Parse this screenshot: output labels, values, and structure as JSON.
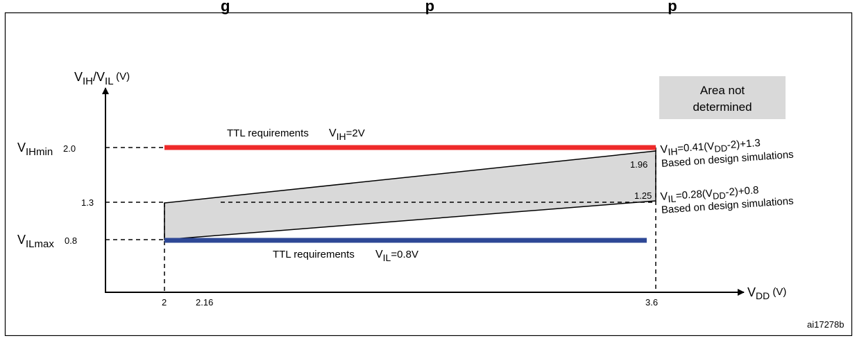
{
  "header": {
    "title_fragment": "g                                              p                                                       p"
  },
  "legend": {
    "label_line1": "Area not",
    "label_line2": "determined",
    "fill": "#d9d9d9"
  },
  "axes": {
    "y_label_main1": "V",
    "y_label_sub1": "IH",
    "y_label_main2": "/V",
    "y_label_sub2": "IL",
    "y_label_unit": " (V)",
    "x_label_main": "V",
    "x_label_sub": "DD",
    "x_label_unit": " (V)"
  },
  "y_ticks": {
    "vih_main": "V",
    "vih_sub": "IHmin",
    "v20": "2.0",
    "v13": "1.3",
    "vil_main": "V",
    "vil_sub": "ILmax",
    "v08": "0.8"
  },
  "x_ticks": {
    "v2": "2",
    "v216": "2.16",
    "v36": "3.6"
  },
  "ttl_high": {
    "label": "TTL requirements",
    "eq_main": "V",
    "eq_sub": "IH",
    "eq_rest": "=2V",
    "color": "#ee2a2a"
  },
  "ttl_low": {
    "label": "TTL requirements",
    "eq_main": "V",
    "eq_sub": "IL",
    "eq_rest": "=0.8V",
    "color": "#2e4896"
  },
  "formula_high": {
    "p1": "V",
    "s1": "IH",
    "p2": "=0.41(V",
    "s2": "DD",
    "p3": "-2)+1.3",
    "note": "Based on design simulations",
    "value": "1.96"
  },
  "formula_low": {
    "p1": "V",
    "s1": "IL",
    "p2": "=0.28(V",
    "s2": "DD",
    "p3": "-2)+0.8",
    "note": "Based on design simulations",
    "value": "1.25"
  },
  "figure_id": "ai17278b"
}
